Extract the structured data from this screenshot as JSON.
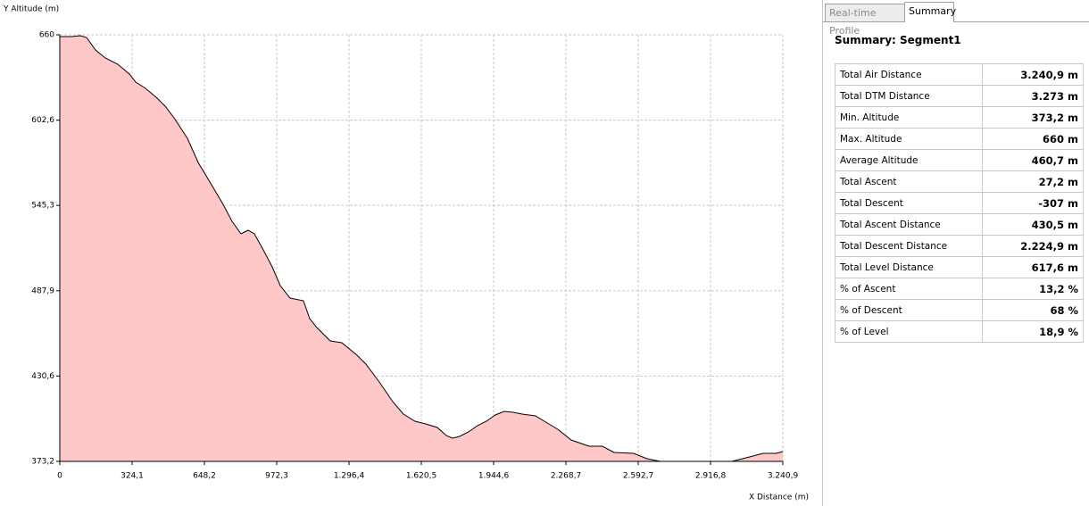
{
  "chart_data": {
    "type": "area",
    "y_label": "Y Altitude (m)",
    "x_label": "X Distance (m)",
    "x": [
      0,
      52,
      92,
      120,
      160,
      204,
      260,
      312,
      340,
      384,
      432,
      472,
      512,
      572,
      620,
      680,
      732,
      772,
      812,
      844,
      872,
      912,
      952,
      988,
      1032,
      1092,
      1120,
      1152,
      1212,
      1264,
      1332,
      1372,
      1432,
      1492,
      1540,
      1592,
      1640,
      1692,
      1732,
      1760,
      1792,
      1832,
      1872,
      1912,
      1952,
      1992,
      2032,
      2072,
      2132,
      2172,
      2232,
      2292,
      2372,
      2432,
      2484,
      2572,
      2632,
      2692,
      2912,
      2952,
      3012,
      3092,
      3152,
      3212,
      3240.9
    ],
    "values": [
      658.8,
      658.8,
      659.4,
      658.2,
      649.8,
      644.4,
      640.2,
      633.6,
      628.2,
      624,
      618,
      612,
      604.2,
      590.4,
      574.2,
      559.2,
      546,
      534.6,
      526.2,
      528.6,
      526.2,
      515.4,
      504,
      491.4,
      483,
      481.2,
      469.2,
      463.2,
      454.2,
      453,
      444.6,
      438.6,
      426.6,
      413.4,
      405,
      400.2,
      398.4,
      396,
      390.6,
      388.8,
      390,
      393,
      397.2,
      400.2,
      404.4,
      406.8,
      406.2,
      405,
      403.8,
      400.2,
      394.8,
      387.6,
      383.4,
      383.4,
      379.2,
      378.6,
      375,
      373.2,
      373.2,
      373.2,
      373.2,
      376.2,
      378.6,
      378.6,
      379.8
    ],
    "color": "#ffc8c8",
    "line_color": "#000000",
    "xlim": [
      0,
      3240.9
    ],
    "ylim": [
      373.2,
      660
    ],
    "xticks": [
      0,
      {
        "value": 324.1,
        "label": "324,1"
      },
      {
        "value": 648.2,
        "label": "648,2"
      },
      {
        "value": 972.3,
        "label": "972,3"
      },
      {
        "value": 1296.4,
        "label": "1.296,4"
      },
      {
        "value": 1620.5,
        "label": "1.620,5"
      },
      {
        "value": 1944.6,
        "label": "1.944,6"
      },
      {
        "value": 2268.7,
        "label": "2.268,7"
      },
      {
        "value": 2592.7,
        "label": "2.592,7"
      },
      {
        "value": 2916.8,
        "label": "2.916,8"
      },
      {
        "value": 3240.9,
        "label": "3.240,9"
      }
    ],
    "yticks": [
      {
        "value": 373.2,
        "label": "373,2"
      },
      {
        "value": 430.6,
        "label": "430,6"
      },
      {
        "value": 487.9,
        "label": "487,9"
      },
      {
        "value": 545.3,
        "label": "545,3"
      },
      {
        "value": 602.6,
        "label": "602,6"
      },
      660
    ],
    "grid": true
  },
  "tabs": [
    "Real-time Profile",
    "Summary"
  ],
  "summary": {
    "title": "Summary: Segment1",
    "rows": [
      [
        "Total Air Distance",
        "3.240,9 m"
      ],
      [
        "Total DTM Distance",
        "3.273 m"
      ],
      [
        "Min. Altitude",
        "373,2 m"
      ],
      [
        "Max. Altitude",
        "660 m"
      ],
      [
        "Average Altitude",
        "460,7 m"
      ],
      [
        "Total Ascent",
        "27,2 m"
      ],
      [
        "Total Descent",
        "-307 m"
      ],
      [
        "Total Ascent Distance",
        "430,5 m"
      ],
      [
        "Total Descent Distance",
        "2.224,9 m"
      ],
      [
        "Total Level Distance",
        "617,6 m"
      ],
      [
        "% of Ascent",
        "13,2 %"
      ],
      [
        "% of Descent",
        "68 %"
      ],
      [
        "% of Level",
        "18,9 %"
      ]
    ]
  }
}
